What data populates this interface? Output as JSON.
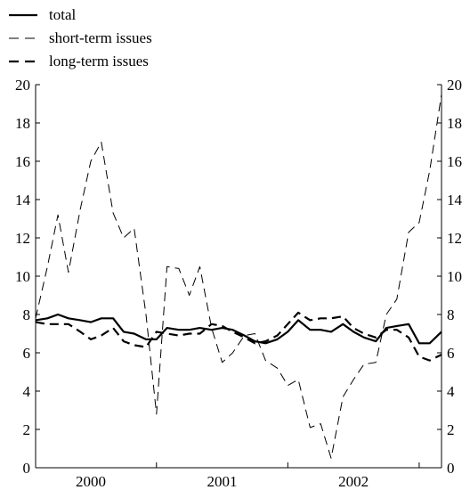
{
  "chart_data": {
    "type": "line",
    "xlabel": "",
    "ylabel": "",
    "ylim": [
      0,
      20
    ],
    "yticks": [
      0,
      2,
      4,
      6,
      8,
      10,
      12,
      14,
      16,
      18,
      20
    ],
    "xlim": [
      1999.58,
      2002.67
    ],
    "x_tick_labels": [
      {
        "label": "2000",
        "x": 2000.0
      },
      {
        "label": "2001",
        "x": 2001.0
      },
      {
        "label": "2002",
        "x": 2002.0
      }
    ],
    "year_boundaries": [
      1999.5,
      2000.5,
      2001.5,
      2002.5
    ],
    "grid": false,
    "legend_position": "top-left",
    "x": [
      1999.58,
      1999.67,
      1999.75,
      1999.83,
      1999.92,
      2000.0,
      2000.08,
      2000.17,
      2000.25,
      2000.33,
      2000.42,
      2000.5,
      2000.58,
      2000.67,
      2000.75,
      2000.83,
      2000.92,
      2001.0,
      2001.08,
      2001.17,
      2001.25,
      2001.33,
      2001.42,
      2001.5,
      2001.58,
      2001.67,
      2001.75,
      2001.83,
      2001.92,
      2002.0,
      2002.08,
      2002.17,
      2002.25,
      2002.33,
      2002.42,
      2002.5,
      2002.58,
      2002.67
    ],
    "series": [
      {
        "name": "total",
        "style": "solid",
        "values": [
          7.7,
          7.8,
          8.0,
          7.8,
          7.7,
          7.6,
          7.8,
          7.8,
          7.1,
          7.0,
          6.7,
          6.7,
          7.3,
          7.2,
          7.2,
          7.3,
          7.2,
          7.3,
          7.2,
          6.9,
          6.6,
          6.5,
          6.7,
          7.1,
          7.7,
          7.2,
          7.2,
          7.1,
          7.5,
          7.1,
          6.8,
          6.6,
          7.3,
          7.4,
          7.5,
          6.5,
          6.5,
          7.1
        ]
      },
      {
        "name": "short-term issues",
        "style": "thin-dashed",
        "values": [
          7.8,
          10.5,
          13.2,
          10.2,
          13.5,
          16.0,
          17.0,
          13.3,
          12.0,
          12.5,
          8.0,
          2.8,
          10.5,
          10.4,
          9.0,
          10.5,
          7.3,
          5.5,
          6.0,
          6.9,
          7.0,
          5.6,
          5.2,
          4.3,
          4.6,
          2.1,
          2.3,
          0.5,
          3.7,
          4.6,
          5.4,
          5.5,
          8.0,
          8.8,
          12.3,
          12.8,
          15.5,
          19.5
        ]
      },
      {
        "name": "long-term issues",
        "style": "thick-dashed",
        "values": [
          7.6,
          7.5,
          7.5,
          7.5,
          7.1,
          6.7,
          6.9,
          7.3,
          6.6,
          6.4,
          6.3,
          7.1,
          7.0,
          6.9,
          7.0,
          7.0,
          7.5,
          7.4,
          7.1,
          6.8,
          6.5,
          6.6,
          6.9,
          7.5,
          8.1,
          7.7,
          7.8,
          7.8,
          7.9,
          7.3,
          7.0,
          6.8,
          7.2,
          7.2,
          6.8,
          5.8,
          5.6,
          5.9
        ]
      }
    ]
  }
}
